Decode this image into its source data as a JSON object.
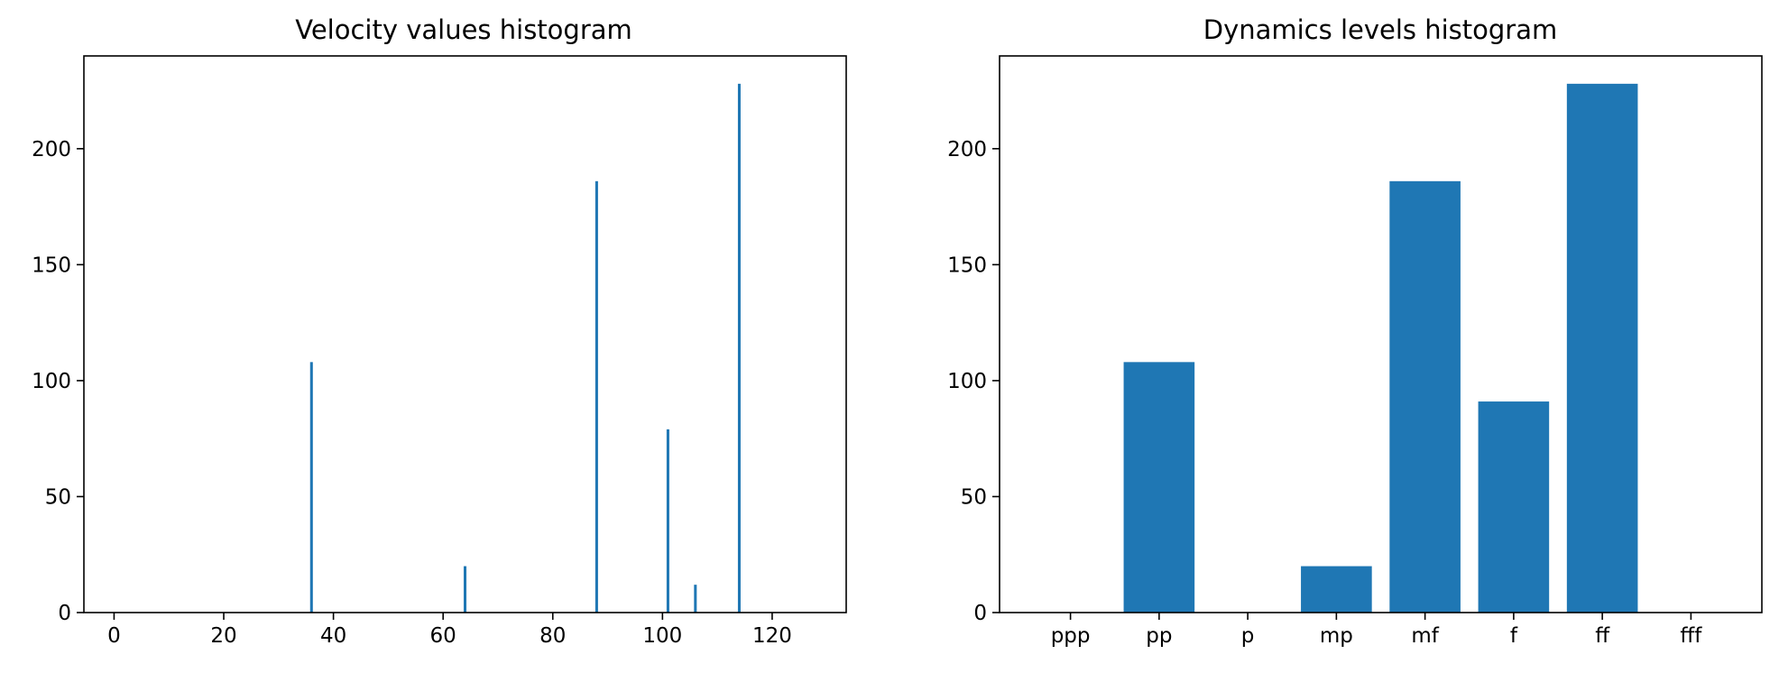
{
  "chart_data": [
    {
      "type": "bar",
      "title": "Velocity values histogram",
      "xlabel": "",
      "ylabel": "",
      "xlim": [
        -5.5,
        133.5
      ],
      "ylim": [
        0,
        240
      ],
      "xticks": [
        0,
        20,
        40,
        60,
        80,
        100,
        120
      ],
      "yticks": [
        0,
        50,
        100,
        150,
        200
      ],
      "bar_width": 1,
      "color": "#1f77b4",
      "x": [
        36,
        64,
        88,
        101,
        106,
        114
      ],
      "values": [
        108,
        20,
        186,
        79,
        12,
        228
      ],
      "grid": false
    },
    {
      "type": "bar",
      "title": "Dynamics levels histogram",
      "xlabel": "",
      "ylabel": "",
      "ylim": [
        0,
        240
      ],
      "yticks": [
        0,
        50,
        100,
        150,
        200
      ],
      "color": "#1f77b4",
      "categories": [
        "ppp",
        "pp",
        "p",
        "mp",
        "mf",
        "f",
        "ff",
        "fff"
      ],
      "values": [
        0,
        108,
        0,
        20,
        186,
        91,
        228,
        0
      ],
      "grid": false
    }
  ]
}
